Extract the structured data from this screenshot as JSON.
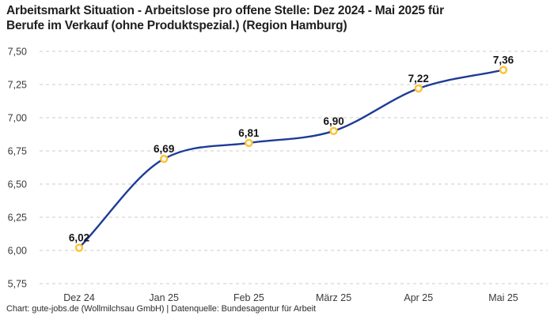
{
  "header": {
    "title_line1": "Arbeitsmarkt Situation - Arbeitslose pro offene Stelle: Dez 2024 - Mai 2025 für",
    "title_line2": "Berufe im Verkauf (ohne Produktspezial.) (Region Hamburg)"
  },
  "footer": {
    "credit": "Chart: gute-jobs.de (Wollmilchsau GmbH) | Datenquelle: Bundesagentur für Arbeit"
  },
  "chart_data": {
    "type": "line",
    "title": "Arbeitsmarkt Situation - Arbeitslose pro offene Stelle: Dez 2024 - Mai 2025 für Berufe im Verkauf (ohne Produktspezial.) (Region Hamburg)",
    "categories": [
      "Dez 24",
      "Jan 25",
      "Feb 25",
      "März 25",
      "Apr 25",
      "Mai 25"
    ],
    "values": [
      6.02,
      6.69,
      6.81,
      6.9,
      7.22,
      7.36
    ],
    "value_labels": [
      "6,02",
      "6,69",
      "6,81",
      "6,90",
      "7,22",
      "7,36"
    ],
    "ylim": [
      5.75,
      7.5
    ],
    "ytick_step": 0.25,
    "ytick_labels_top_to_bottom": [
      "7,50",
      "7,25",
      "7,00",
      "6,75",
      "6,50",
      "6,25",
      "6,00",
      "5,75"
    ],
    "xlabel": "",
    "ylabel": "",
    "grid": "horizontal-dashed",
    "legend": "none",
    "line_smoothing": "monotone-cubic",
    "colors": {
      "line": "#1e3c96",
      "marker_ring": "#fcc331",
      "marker_fill": "#ffffff",
      "gridline": "#cbcbcb",
      "axis_text": "#3a3a3a",
      "data_label_text": "#141414",
      "title_text": "#1f1f1f",
      "background": "#ffffff"
    }
  }
}
